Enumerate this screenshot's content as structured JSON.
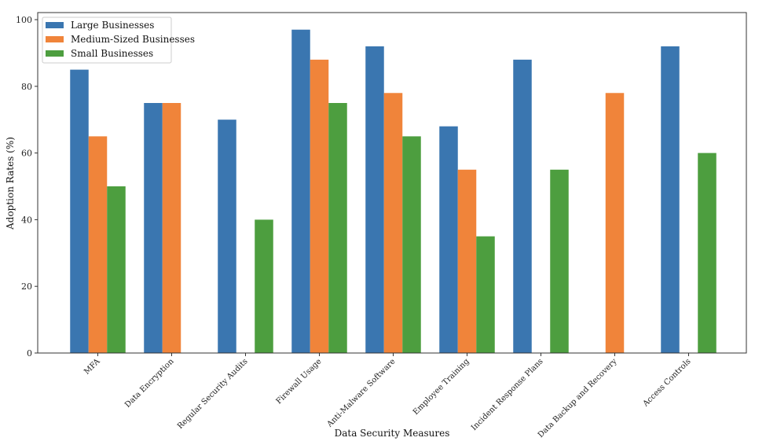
{
  "chart_data": {
    "type": "bar",
    "title": "",
    "xlabel": "Data Security Measures",
    "ylabel": "Adoption Rates (%)",
    "ylim": [
      0,
      100
    ],
    "yticks": [
      0,
      20,
      40,
      60,
      80,
      100
    ],
    "grid": false,
    "legend_position": "top-left",
    "categories": [
      "MFA",
      "Data Encryption",
      "Regular Security Audits",
      "Firewall Usage",
      "Anti-Malware Software",
      "Employee Training",
      "Incident Response Plans",
      "Data Backup and Recovery",
      "Access Controls"
    ],
    "series": [
      {
        "name": "Large Businesses",
        "color": "#3a76b0",
        "values": [
          85,
          75,
          70,
          97,
          92,
          68,
          88,
          0,
          92
        ]
      },
      {
        "name": "Medium-Sized Businesses",
        "color": "#f0843a",
        "values": [
          65,
          75,
          0,
          88,
          78,
          55,
          0,
          78,
          0
        ]
      },
      {
        "name": "Small Businesses",
        "color": "#4d9e3f",
        "values": [
          50,
          0,
          40,
          75,
          65,
          35,
          55,
          0,
          60
        ]
      }
    ]
  }
}
